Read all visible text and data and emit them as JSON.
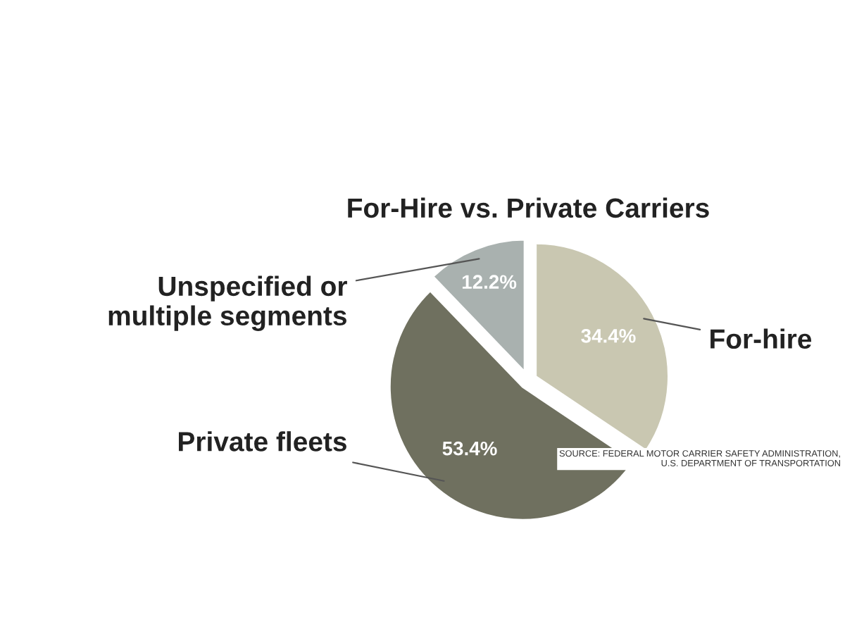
{
  "chart_data": {
    "type": "pie",
    "title": "For-Hire vs. Private Carriers",
    "categories": [
      "For-hire",
      "Private fleets",
      "Unspecified or\nmultiple segments"
    ],
    "values": [
      34.4,
      53.4,
      12.2
    ],
    "colors": [
      "#c9c7b1",
      "#6f705f",
      "#a9b1af"
    ],
    "value_labels": [
      "34.4%",
      "53.4%",
      "12.2%"
    ],
    "annotations": [
      "SOURCE: FEDERAL MOTOR CARRIER SAFETY ADMINISTRATION,\nU.S. DEPARTMENT OF TRANSPORTATION"
    ]
  }
}
